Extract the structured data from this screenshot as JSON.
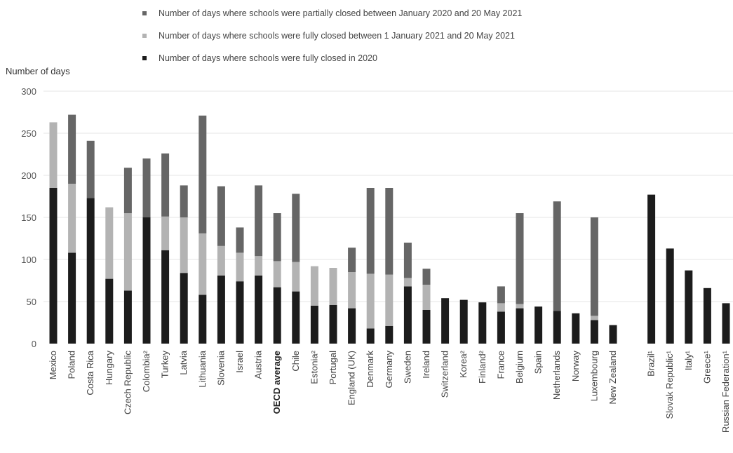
{
  "chart_data": {
    "type": "bar",
    "stacked": true,
    "ylabel": "Number of days",
    "ylim": [
      0,
      300
    ],
    "yticks": [
      0,
      50,
      100,
      150,
      200,
      250,
      300
    ],
    "grid": true,
    "legend_position": "top",
    "categories": [
      "Mexico",
      "Poland",
      "Costa Rica",
      "Hungary",
      "Czech Republic",
      "Colombia²",
      "Turkey",
      "Latvia",
      "Lithuania",
      "Slovenia",
      "Israel",
      "Austria",
      "OECD average",
      "Chile",
      "Estonia²",
      "Portugal",
      "England (UK)",
      "Denmark",
      "Germany",
      "Sweden",
      "Ireland",
      "Switzerland",
      "Korea²",
      "Finland²",
      "France",
      "Belgium",
      "Spain",
      "Netherlands",
      "Norway",
      "Luxembourg",
      "New Zealand",
      "Brazil¹",
      "Slovak Republic¹",
      "Italy¹",
      "Greece¹",
      "Russian Federation¹"
    ],
    "highlight_category": "OECD average",
    "gap_before_category": "Brazil¹",
    "series": [
      {
        "name": "Number of days where schools were fully closed in 2020",
        "color": "#1c1c1c",
        "values": [
          185,
          108,
          173,
          77,
          63,
          150,
          111,
          84,
          58,
          81,
          74,
          81,
          67,
          62,
          45,
          46,
          42,
          18,
          21,
          68,
          40,
          54,
          52,
          49,
          38,
          42,
          44,
          39,
          36,
          28,
          22,
          177,
          113,
          87,
          66,
          48
        ]
      },
      {
        "name": "Number of days where schools were fully closed between 1 January 2021 and 20 May 2021",
        "color": "#b3b3b3",
        "values": [
          78,
          82,
          0,
          85,
          92,
          0,
          40,
          66,
          73,
          35,
          34,
          23,
          31,
          35,
          47,
          44,
          43,
          65,
          61,
          10,
          30,
          0,
          0,
          0,
          10,
          5,
          0,
          0,
          0,
          5,
          0,
          0,
          0,
          0,
          0,
          0
        ]
      },
      {
        "name": "Number of days where schools were partially closed between January 2020 and 20 May 2021",
        "color": "#666666",
        "values": [
          0,
          82,
          68,
          0,
          54,
          70,
          75,
          38,
          140,
          71,
          30,
          84,
          57,
          81,
          0,
          0,
          29,
          102,
          103,
          42,
          19,
          0,
          0,
          0,
          20,
          108,
          0,
          130,
          0,
          117,
          0,
          0,
          0,
          0,
          0,
          0
        ]
      }
    ],
    "legend_order": [
      2,
      1,
      0
    ]
  }
}
